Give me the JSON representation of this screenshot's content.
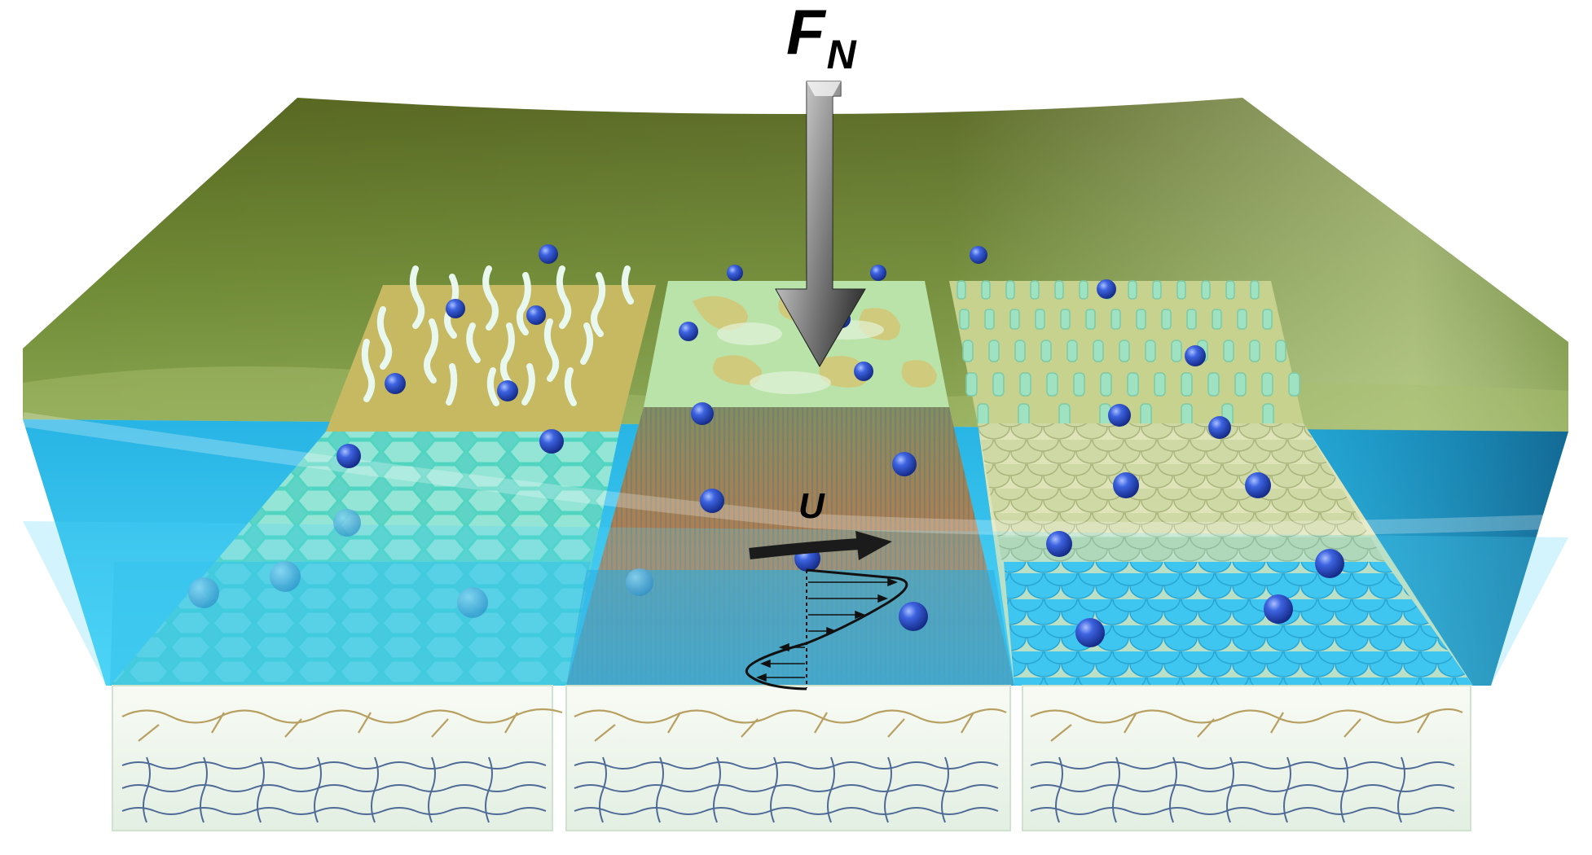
{
  "labels": {
    "force_main": "F",
    "force_sub": "N",
    "velocity": "U"
  },
  "colors": {
    "top_surface": "#6f8a35",
    "fluid_layer": "#27c3f0",
    "substrate": "#eef6ee",
    "particles": "#2a49c9",
    "polymer_chains_upper": "#b8a062",
    "polymer_chains_lower": "#4f6a96"
  },
  "panels": [
    {
      "position": "back-left",
      "pattern": "brushes"
    },
    {
      "position": "back-middle",
      "pattern": "smooth-patches"
    },
    {
      "position": "back-right",
      "pattern": "pillar-array"
    },
    {
      "position": "front-left",
      "pattern": "hexagonal-honeycomb"
    },
    {
      "position": "front-middle",
      "pattern": "fibrous"
    },
    {
      "position": "front-right",
      "pattern": "scales"
    }
  ]
}
